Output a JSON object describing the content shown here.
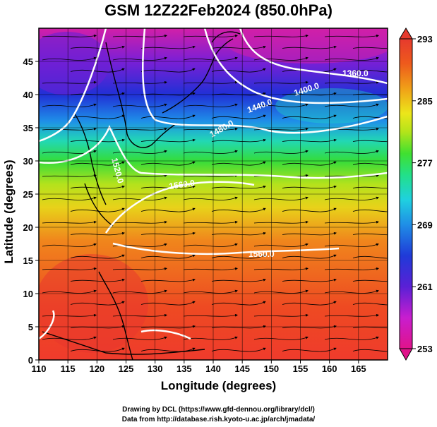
{
  "title": "GSM 12Z22Feb2024 (850.0hPa)",
  "axes": {
    "xlabel": "Longitude (degrees)",
    "ylabel": "Latitude  (degrees)",
    "x_ticks": [
      "110",
      "115",
      "120",
      "125",
      "130",
      "135",
      "140",
      "145",
      "150",
      "155",
      "160",
      "165"
    ],
    "y_ticks": [
      "0",
      "5",
      "10",
      "15",
      "20",
      "25",
      "30",
      "35",
      "40",
      "45"
    ],
    "x_range": [
      110,
      170
    ],
    "y_range": [
      0,
      50
    ]
  },
  "colorbar": {
    "ticks": [
      "293",
      "285",
      "277",
      "269",
      "261",
      "253"
    ],
    "range": [
      253,
      293
    ],
    "colors": [
      "#e0138a",
      "#c81ecf",
      "#6a1fd4",
      "#2030d8",
      "#1f7ee6",
      "#1fc0e8",
      "#20e0b8",
      "#30e040",
      "#9ae21a",
      "#e8e81a",
      "#f0b818",
      "#f07a18",
      "#ee4a1e",
      "#e63a2e"
    ]
  },
  "contour_labels": [
    "1360.0",
    "1400.0",
    "1440.0",
    "1480.0",
    "1520.0",
    "1560.0"
  ],
  "credits": {
    "line1": "Drawing by DCL (https://www.gfd-dennou.org/library/dcl/)",
    "line2": "Data from http://database.rish.kyoto-u.ac.jp/arch/jmadata/"
  }
}
